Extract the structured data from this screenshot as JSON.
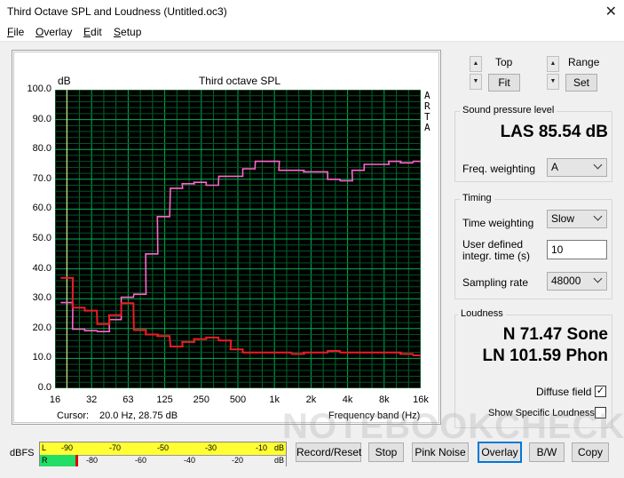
{
  "window": {
    "title": "Third Octave SPL and Loudness (Untitled.oc3)",
    "close": "✕"
  },
  "menu": [
    {
      "key": "F",
      "rest": "ile"
    },
    {
      "key": "O",
      "rest": "verlay"
    },
    {
      "key": "E",
      "rest": "dit"
    },
    {
      "key": "S",
      "rest": "etup"
    }
  ],
  "plot": {
    "title": "Third octave SPL",
    "y_unit": "dB",
    "x_label": "Frequency band (Hz)",
    "cursor_label": "Cursor:",
    "cursor_value": "20.0 Hz, 28.75 dB",
    "side_text": [
      "A",
      "R",
      "T",
      "A"
    ]
  },
  "chart_data": {
    "type": "line",
    "title": "Third octave SPL",
    "ylabel": "dB",
    "xlabel": "Frequency band (Hz)",
    "ylim": [
      0,
      100
    ],
    "yticks": [
      "100.0",
      "90.0",
      "80.0",
      "70.0",
      "60.0",
      "50.0",
      "40.0",
      "30.0",
      "20.0",
      "10.0",
      "0.0"
    ],
    "xticks": [
      "16",
      "32",
      "63",
      "125",
      "250",
      "500",
      "1k",
      "2k",
      "4k",
      "8k",
      "16k"
    ],
    "grid": true,
    "bands": [
      "20",
      "25",
      "31.5",
      "40",
      "50",
      "63",
      "80",
      "100",
      "125",
      "160",
      "200",
      "250",
      "315",
      "400",
      "500",
      "630",
      "800",
      "1k",
      "1.25k",
      "1.6k",
      "2k",
      "2.5k",
      "3.15k",
      "4k",
      "5k",
      "6.3k",
      "8k",
      "10k",
      "12.5k",
      "16k",
      "20k"
    ],
    "series": [
      {
        "color": "#ff66cc",
        "values": [
          28.7,
          19.8,
          19.3,
          19.0,
          23.0,
          30.5,
          31.5,
          45.0,
          57.5,
          67.0,
          68.5,
          69.0,
          68.0,
          71.0,
          71.0,
          73.5,
          76.0,
          76.0,
          73.0,
          73.0,
          72.5,
          72.5,
          70.0,
          69.5,
          73.0,
          75.0,
          75.0,
          76.0,
          75.5,
          76.0,
          76.0
        ]
      },
      {
        "color": "#ee1c24",
        "values": [
          37.0,
          27.0,
          26.0,
          21.5,
          24.5,
          28.5,
          19.5,
          18.0,
          17.5,
          14.0,
          15.5,
          16.5,
          17.0,
          16.0,
          13.0,
          12.0,
          12.0,
          12.0,
          12.0,
          11.5,
          12.0,
          12.0,
          12.5,
          12.0,
          12.0,
          12.0,
          12.0,
          12.0,
          11.5,
          11.0,
          11.0
        ]
      }
    ]
  },
  "controls": {
    "top_label": "Top",
    "range_label": "Range",
    "fit_button": "Fit",
    "set_button": "Set",
    "spin_up": "▲",
    "spin_down": "▼"
  },
  "spl": {
    "group_label": "Sound pressure level",
    "value": "LAS 85.54 dB",
    "freq_weighting_label": "Freq. weighting",
    "freq_weighting_value": "A"
  },
  "timing": {
    "group_label": "Timing",
    "time_weighting_label": "Time weighting",
    "time_weighting_value": "Slow",
    "integr_label_line1": "User defined",
    "integr_label_line2": "integr. time (s)",
    "integr_value": "10",
    "sampling_rate_label": "Sampling rate",
    "sampling_rate_value": "48000"
  },
  "loudness": {
    "group_label": "Loudness",
    "sone": "N 71.47 Sone",
    "phon": "LN 101.59 Phon",
    "diffuse_field_label": "Diffuse field",
    "diffuse_field_checked": "✓",
    "show_specific_label": "Show Specific Loudness"
  },
  "meter": {
    "label": "dBFS",
    "left": "L",
    "right": "R",
    "top_ticks": [
      "-90",
      "-70",
      "-50",
      "-30",
      "-10",
      "dB"
    ],
    "bottom_ticks": [
      "-80",
      "-60",
      "-40",
      "-20",
      "dB"
    ]
  },
  "buttons": {
    "record_reset": "Record/Reset",
    "stop": "Stop",
    "pink_noise": "Pink Noise",
    "overlay": "Overlay",
    "bw": "B/W",
    "copy": "Copy"
  },
  "watermark": "NOTEBOOKCHECK"
}
